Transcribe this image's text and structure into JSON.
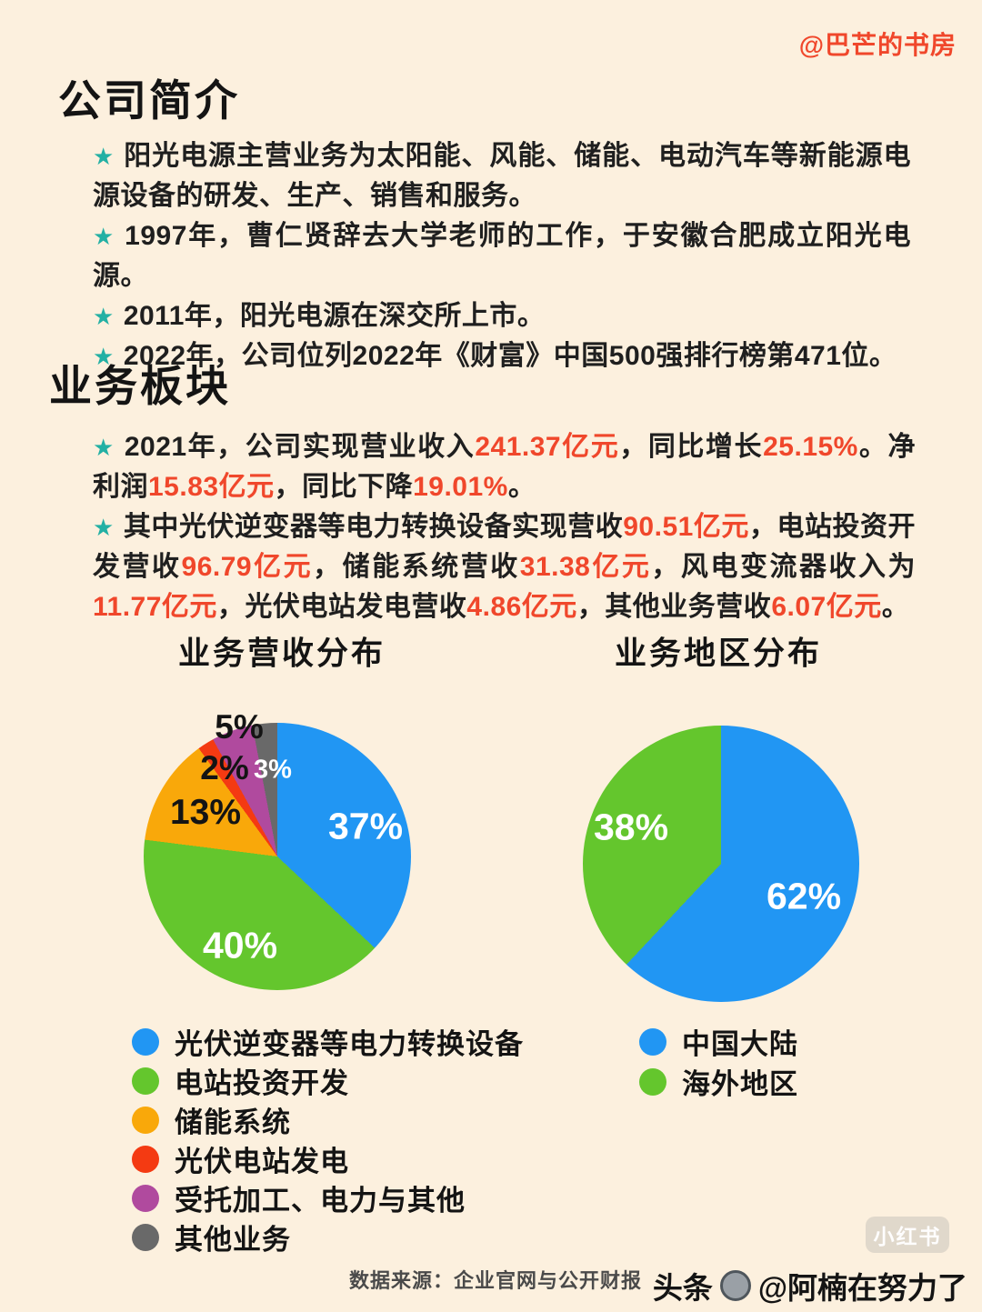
{
  "page": {
    "watermark_top": "@巴芒的书房",
    "star_char": "★",
    "footer_source": "数据来源：企业官网与公开财报",
    "xhs_badge": "小红书",
    "credit_platform": "头条",
    "credit_author": "@阿楠在努力了"
  },
  "intro": {
    "title": "公司简介",
    "bullets": [
      "阳光电源主营业务为太阳能、风能、储能、电动汽车等新能源电源设备的研发、生产、销售和服务。",
      "1997年，曹仁贤辞去大学老师的工作，于安徽合肥成立阳光电源。",
      "2011年，阳光电源在深交所上市。",
      "2022年，公司位列2022年《财富》中国500强排行榜第471位。"
    ]
  },
  "business": {
    "title": "业务板块",
    "p1": [
      {
        "text": "2021年，公司实现营业收入",
        "red": false
      },
      {
        "text": "241.37亿元",
        "red": true
      },
      {
        "text": "，同比增长",
        "red": false
      },
      {
        "text": "25.15%",
        "red": true
      },
      {
        "text": "。净利润",
        "red": false
      },
      {
        "text": "15.83亿元",
        "red": true
      },
      {
        "text": "，同比下降",
        "red": false
      },
      {
        "text": "19.01%",
        "red": true
      },
      {
        "text": "。",
        "red": false
      }
    ],
    "p2": [
      {
        "text": "其中光伏逆变器等电力转换设备实现营收",
        "red": false
      },
      {
        "text": "90.51亿元",
        "red": true
      },
      {
        "text": "，电站投资开发营收",
        "red": false
      },
      {
        "text": "96.79亿元",
        "red": true
      },
      {
        "text": "，储能系统营收",
        "red": false
      },
      {
        "text": "31.38亿元",
        "red": true
      },
      {
        "text": "，风电变流器收入为",
        "red": false
      },
      {
        "text": "11.77亿元",
        "red": true
      },
      {
        "text": "，光伏电站发电营收",
        "red": false
      },
      {
        "text": "4.86亿元",
        "red": true
      },
      {
        "text": "，其他业务营收",
        "red": false
      },
      {
        "text": "6.07亿元",
        "red": true
      },
      {
        "text": "。",
        "red": false
      }
    ]
  },
  "chart_data": [
    {
      "type": "pie",
      "title": "业务营收分布",
      "legend_position": "bottom",
      "start_angle_deg": 0,
      "direction": "clockwise",
      "slices": [
        {
          "label": "光伏逆变器等电力转换设备",
          "value": 37,
          "pct": "37%",
          "color": "#2196f3"
        },
        {
          "label": "电站投资开发",
          "value": 40,
          "pct": "40%",
          "color": "#64c62d"
        },
        {
          "label": "储能系统",
          "value": 13,
          "pct": "13%",
          "color": "#f9a80a"
        },
        {
          "label": "光伏电站发电",
          "value": 2,
          "pct": "2%",
          "color": "#f43a12"
        },
        {
          "label": "受托加工、电力与其他",
          "value": 5,
          "pct": "5%",
          "color": "#b04a9e"
        },
        {
          "label": "其他业务",
          "value": 3,
          "pct": "3%",
          "color": "#696969"
        }
      ]
    },
    {
      "type": "pie",
      "title": "业务地区分布",
      "legend_position": "bottom",
      "start_angle_deg": 0,
      "direction": "clockwise",
      "slices": [
        {
          "label": "中国大陆",
          "value": 62,
          "pct": "62%",
          "color": "#2196f3"
        },
        {
          "label": "海外地区",
          "value": 38,
          "pct": "38%",
          "color": "#64c62d"
        }
      ]
    }
  ],
  "colors": {
    "background": "#fcf0de",
    "accent_red": "#f0472b",
    "star_teal": "#23b0a4",
    "text": "#1f1f1f"
  }
}
